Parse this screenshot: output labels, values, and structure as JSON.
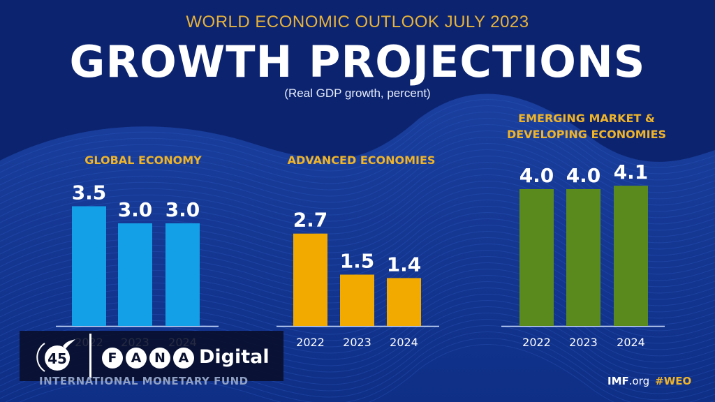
{
  "header": {
    "kicker": "WORLD ECONOMIC OUTLOOK JULY 2023",
    "title": "GROWTH PROJECTIONS",
    "unit_note": "(Real GDP growth, percent)"
  },
  "colors": {
    "background": "#0c2470",
    "accent_gold": "#f0b429",
    "global_bar": "#14a0e6",
    "advanced_bar": "#f2aa00",
    "emerging_bar": "#5a8a1e"
  },
  "chart_data": [
    {
      "type": "bar",
      "title": "GLOBAL ECONOMY",
      "categories": [
        "2022",
        "2023",
        "2024"
      ],
      "values": [
        3.5,
        3.0,
        3.0
      ],
      "value_labels": [
        "3.5",
        "3.0",
        "3.0"
      ],
      "xlabel": "",
      "ylabel": "Real GDP growth, percent",
      "ylim": [
        0,
        4.5
      ],
      "grid": false,
      "legend": "none",
      "color": "#14a0e6"
    },
    {
      "type": "bar",
      "title": "ADVANCED ECONOMIES",
      "categories": [
        "2022",
        "2023",
        "2024"
      ],
      "values": [
        2.7,
        1.5,
        1.4
      ],
      "value_labels": [
        "2.7",
        "1.5",
        "1.4"
      ],
      "xlabel": "",
      "ylabel": "Real GDP growth, percent",
      "ylim": [
        0,
        4.5
      ],
      "grid": false,
      "legend": "none",
      "color": "#f2aa00"
    },
    {
      "type": "bar",
      "title": "EMERGING MARKET & DEVELOPING ECONOMIES",
      "title_lines": [
        "EMERGING MARKET &",
        "DEVELOPING ECONOMIES"
      ],
      "categories": [
        "2022",
        "2023",
        "2024"
      ],
      "values": [
        4.0,
        4.0,
        4.1
      ],
      "value_labels": [
        "4.0",
        "4.0",
        "4.1"
      ],
      "xlabel": "",
      "ylabel": "Real GDP growth, percent",
      "ylim": [
        0,
        4.5
      ],
      "grid": false,
      "legend": "none",
      "color": "#5a8a1e"
    }
  ],
  "watermark": {
    "logo": "fana-45-logo-icon",
    "letters": [
      "F",
      "A",
      "N",
      "A"
    ],
    "suffix": "Digital"
  },
  "footer": {
    "organization": "INTERNATIONAL MONETARY FUND",
    "site_bold": "IMF",
    "site_rest": ".org",
    "hashtag": "#WEO"
  }
}
